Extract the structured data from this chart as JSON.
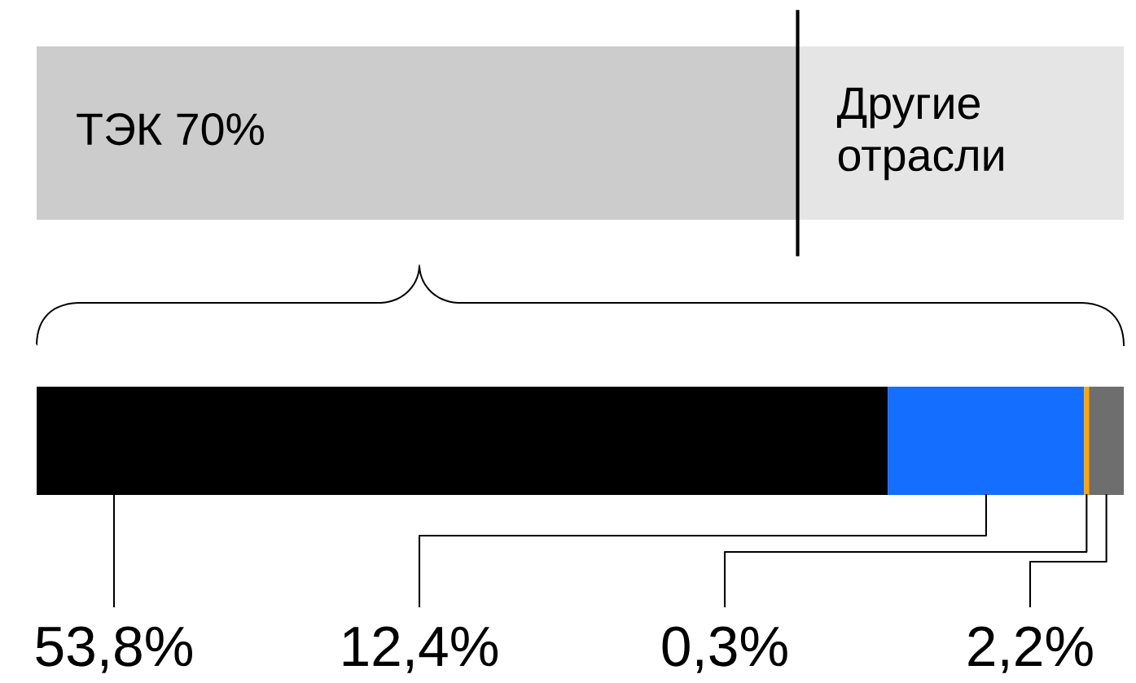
{
  "chart_data": [
    {
      "type": "bar",
      "orientation": "horizontal",
      "stacked": true,
      "categories": [
        null
      ],
      "xlim": [
        0,
        100
      ],
      "tick_labels": false,
      "series": [
        {
          "color": "#cccccc",
          "values": [
            70
          ],
          "value_labels": [
            "ТЭК 70%"
          ]
        },
        {
          "color": "#e5e5e5",
          "values": [
            30
          ],
          "value_labels": [
            "Другие\nотрасли"
          ]
        }
      ],
      "ref_lines": [
        {
          "axis": "x",
          "value": 70,
          "color": "#000000"
        }
      ]
    },
    {
      "type": "bar",
      "orientation": "horizontal",
      "stacked": true,
      "categories": [
        null
      ],
      "xlim": [
        0,
        68.7
      ],
      "tick_labels": false,
      "series": [
        {
          "color": "#000000",
          "values": [
            53.8
          ],
          "value_labels": [
            "53,8%"
          ]
        },
        {
          "color": "#146eff",
          "values": [
            12.4
          ],
          "value_labels": [
            "12,4%"
          ]
        },
        {
          "color": "#ffa500",
          "values": [
            0.3
          ],
          "value_labels": [
            "0,3%"
          ]
        },
        {
          "color": "#6e6e6e",
          "values": [
            2.2
          ],
          "value_labels": [
            "2,2%"
          ]
        }
      ]
    }
  ]
}
